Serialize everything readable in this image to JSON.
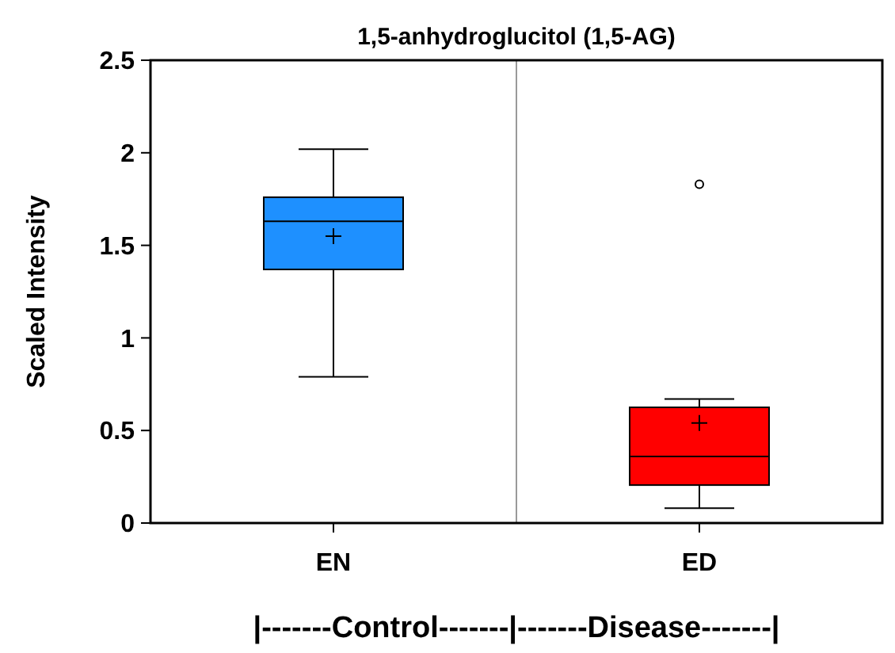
{
  "chart_data": {
    "type": "box",
    "title": "1,5-anhydroglucitol (1,5-AG)",
    "ylabel": "Scaled Intensity",
    "categories": [
      "EN",
      "ED"
    ],
    "colors": [
      "#1e90ff",
      "#ff0000"
    ],
    "boxes": [
      {
        "low": 0.79,
        "q1": 1.37,
        "median": 1.63,
        "q3": 1.76,
        "high": 2.02,
        "mean": 1.55
      },
      {
        "low": 0.08,
        "q1": 0.205,
        "median": 0.36,
        "q3": 0.625,
        "high": 0.67,
        "mean": 0.54,
        "outliers": [
          1.83
        ]
      }
    ],
    "ylim": [
      0,
      2.5
    ],
    "yticks": [
      0,
      0.5,
      1,
      1.5,
      2,
      2.5
    ],
    "grid": false,
    "annotations": [
      "|-------Control-------|-------Disease-------|"
    ]
  }
}
